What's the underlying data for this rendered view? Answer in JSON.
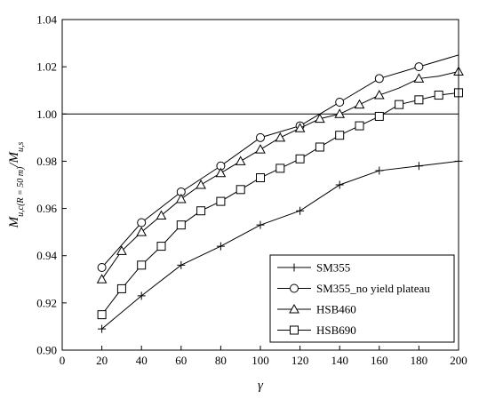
{
  "chart_data": {
    "type": "line",
    "xlabel": "γ",
    "ylabel_parts": {
      "main": "M",
      "sub1": "u,c(R = 50 m)",
      "slash": "/M",
      "sub2": "u,s"
    },
    "xlim": [
      0,
      200
    ],
    "ylim": [
      0.9,
      1.04
    ],
    "xticks": [
      0,
      20,
      40,
      60,
      80,
      100,
      120,
      140,
      160,
      180,
      200
    ],
    "yticks": [
      0.9,
      0.92,
      0.94,
      0.96,
      0.98,
      1.0,
      1.02,
      1.04
    ],
    "ytick_labels": [
      "0.90",
      "0.92",
      "0.94",
      "0.96",
      "0.98",
      "1.00",
      "1.02",
      "1.04"
    ],
    "reference_line": 1.0,
    "grid": false,
    "legend_position": "bottom-right",
    "series": [
      {
        "name": "SM355",
        "marker": "plus",
        "x": [
          20,
          40,
          60,
          80,
          100,
          120,
          140,
          160,
          180,
          200
        ],
        "y": [
          0.909,
          0.923,
          0.936,
          0.944,
          0.953,
          0.959,
          0.97,
          0.976,
          0.978,
          0.98
        ],
        "marker_x": [
          20,
          40,
          60,
          80,
          100,
          120,
          140,
          160,
          180,
          200
        ]
      },
      {
        "name": "SM355_no yield plateau",
        "marker": "circle",
        "x": [
          20,
          40,
          60,
          80,
          100,
          120,
          140,
          160,
          180,
          200
        ],
        "y": [
          0.935,
          0.954,
          0.967,
          0.978,
          0.99,
          0.995,
          1.005,
          1.015,
          1.02,
          1.025
        ],
        "marker_x": [
          20,
          40,
          60,
          80,
          100,
          120,
          140,
          160,
          180
        ]
      },
      {
        "name": "HSB460",
        "marker": "triangle",
        "x": [
          20,
          30,
          40,
          50,
          60,
          70,
          80,
          90,
          100,
          110,
          120,
          130,
          140,
          150,
          160,
          170,
          180,
          190,
          200
        ],
        "y": [
          0.93,
          0.942,
          0.95,
          0.957,
          0.964,
          0.97,
          0.975,
          0.98,
          0.985,
          0.99,
          0.994,
          0.998,
          1.0,
          1.004,
          1.008,
          1.011,
          1.015,
          1.016,
          1.018
        ],
        "marker_x": [
          20,
          30,
          40,
          50,
          60,
          70,
          80,
          90,
          100,
          110,
          120,
          130,
          140,
          150,
          160,
          180,
          200
        ]
      },
      {
        "name": "HSB690",
        "marker": "square",
        "x": [
          20,
          30,
          40,
          50,
          60,
          70,
          80,
          90,
          100,
          110,
          120,
          130,
          140,
          150,
          160,
          170,
          180,
          190,
          200
        ],
        "y": [
          0.915,
          0.926,
          0.936,
          0.944,
          0.953,
          0.959,
          0.963,
          0.968,
          0.973,
          0.977,
          0.981,
          0.986,
          0.991,
          0.995,
          0.999,
          1.004,
          1.006,
          1.008,
          1.009
        ],
        "marker_x": [
          20,
          30,
          40,
          50,
          60,
          70,
          80,
          90,
          100,
          110,
          120,
          130,
          140,
          150,
          160,
          170,
          180,
          190,
          200
        ]
      }
    ]
  }
}
